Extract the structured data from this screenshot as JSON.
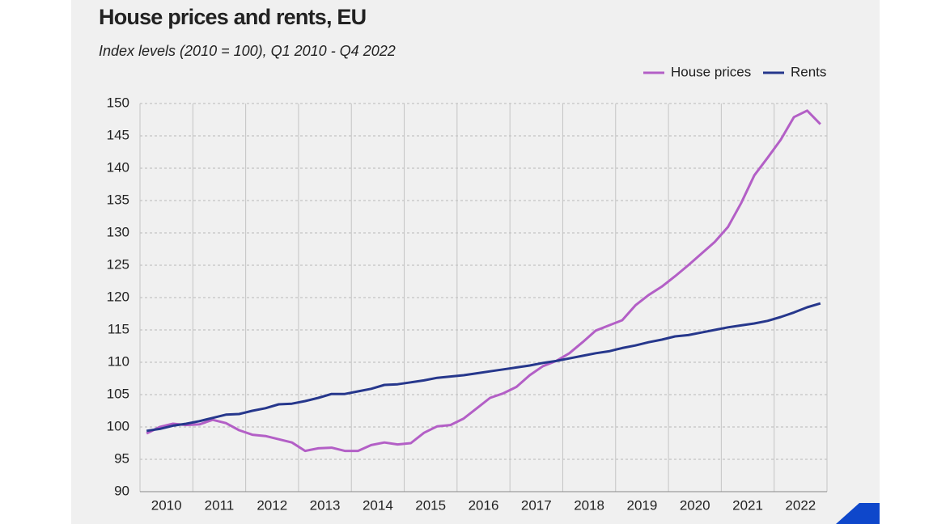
{
  "chart_data": {
    "type": "line",
    "title": "House prices and rents, EU",
    "subtitle": "Index levels (2010 = 100),  Q1 2010 - Q4 2022",
    "categories": [
      "2010",
      null,
      null,
      null,
      "2011",
      null,
      null,
      null,
      "2012",
      null,
      null,
      null,
      "2013",
      null,
      null,
      null,
      "2014",
      null,
      null,
      null,
      "2015",
      null,
      null,
      null,
      "2016",
      null,
      null,
      null,
      "2017",
      null,
      null,
      null,
      "2018",
      null,
      null,
      null,
      "2019",
      null,
      null,
      null,
      "2020",
      null,
      null,
      null,
      "2021",
      null,
      null,
      null,
      "2022",
      null,
      null,
      null
    ],
    "series": [
      {
        "name": "House prices",
        "color": "#b35fc6",
        "values": [
          99.0,
          100.0,
          100.5,
          100.3,
          100.4,
          101.1,
          100.6,
          99.5,
          98.8,
          98.6,
          98.1,
          97.6,
          96.3,
          96.7,
          96.8,
          96.3,
          96.3,
          97.2,
          97.6,
          97.3,
          97.5,
          99.1,
          100.1,
          100.3,
          101.3,
          102.9,
          104.5,
          105.2,
          106.2,
          108.0,
          109.4,
          110.2,
          111.4,
          113.1,
          114.9,
          115.7,
          116.5,
          118.8,
          120.4,
          121.7,
          123.3,
          125.0,
          126.8,
          128.6,
          130.9,
          134.6,
          138.9,
          141.6,
          144.4,
          147.9,
          148.9,
          146.8
        ]
      },
      {
        "name": "Rents",
        "color": "#26378c",
        "values": [
          99.4,
          99.7,
          100.2,
          100.5,
          100.9,
          101.4,
          101.9,
          102.0,
          102.5,
          102.9,
          103.5,
          103.6,
          104.0,
          104.5,
          105.1,
          105.1,
          105.5,
          105.9,
          106.5,
          106.6,
          106.9,
          107.2,
          107.6,
          107.8,
          108.0,
          108.3,
          108.6,
          108.9,
          109.2,
          109.5,
          109.9,
          110.2,
          110.6,
          111.0,
          111.4,
          111.7,
          112.2,
          112.6,
          113.1,
          113.5,
          114.0,
          114.2,
          114.6,
          115.0,
          115.4,
          115.7,
          116.0,
          116.4,
          117.0,
          117.7,
          118.5,
          119.1
        ]
      }
    ],
    "ylim": [
      90,
      150
    ],
    "yticks": [
      90,
      95,
      100,
      105,
      110,
      115,
      120,
      125,
      130,
      135,
      140,
      145,
      150
    ],
    "grid": true,
    "legend": "top-right"
  }
}
